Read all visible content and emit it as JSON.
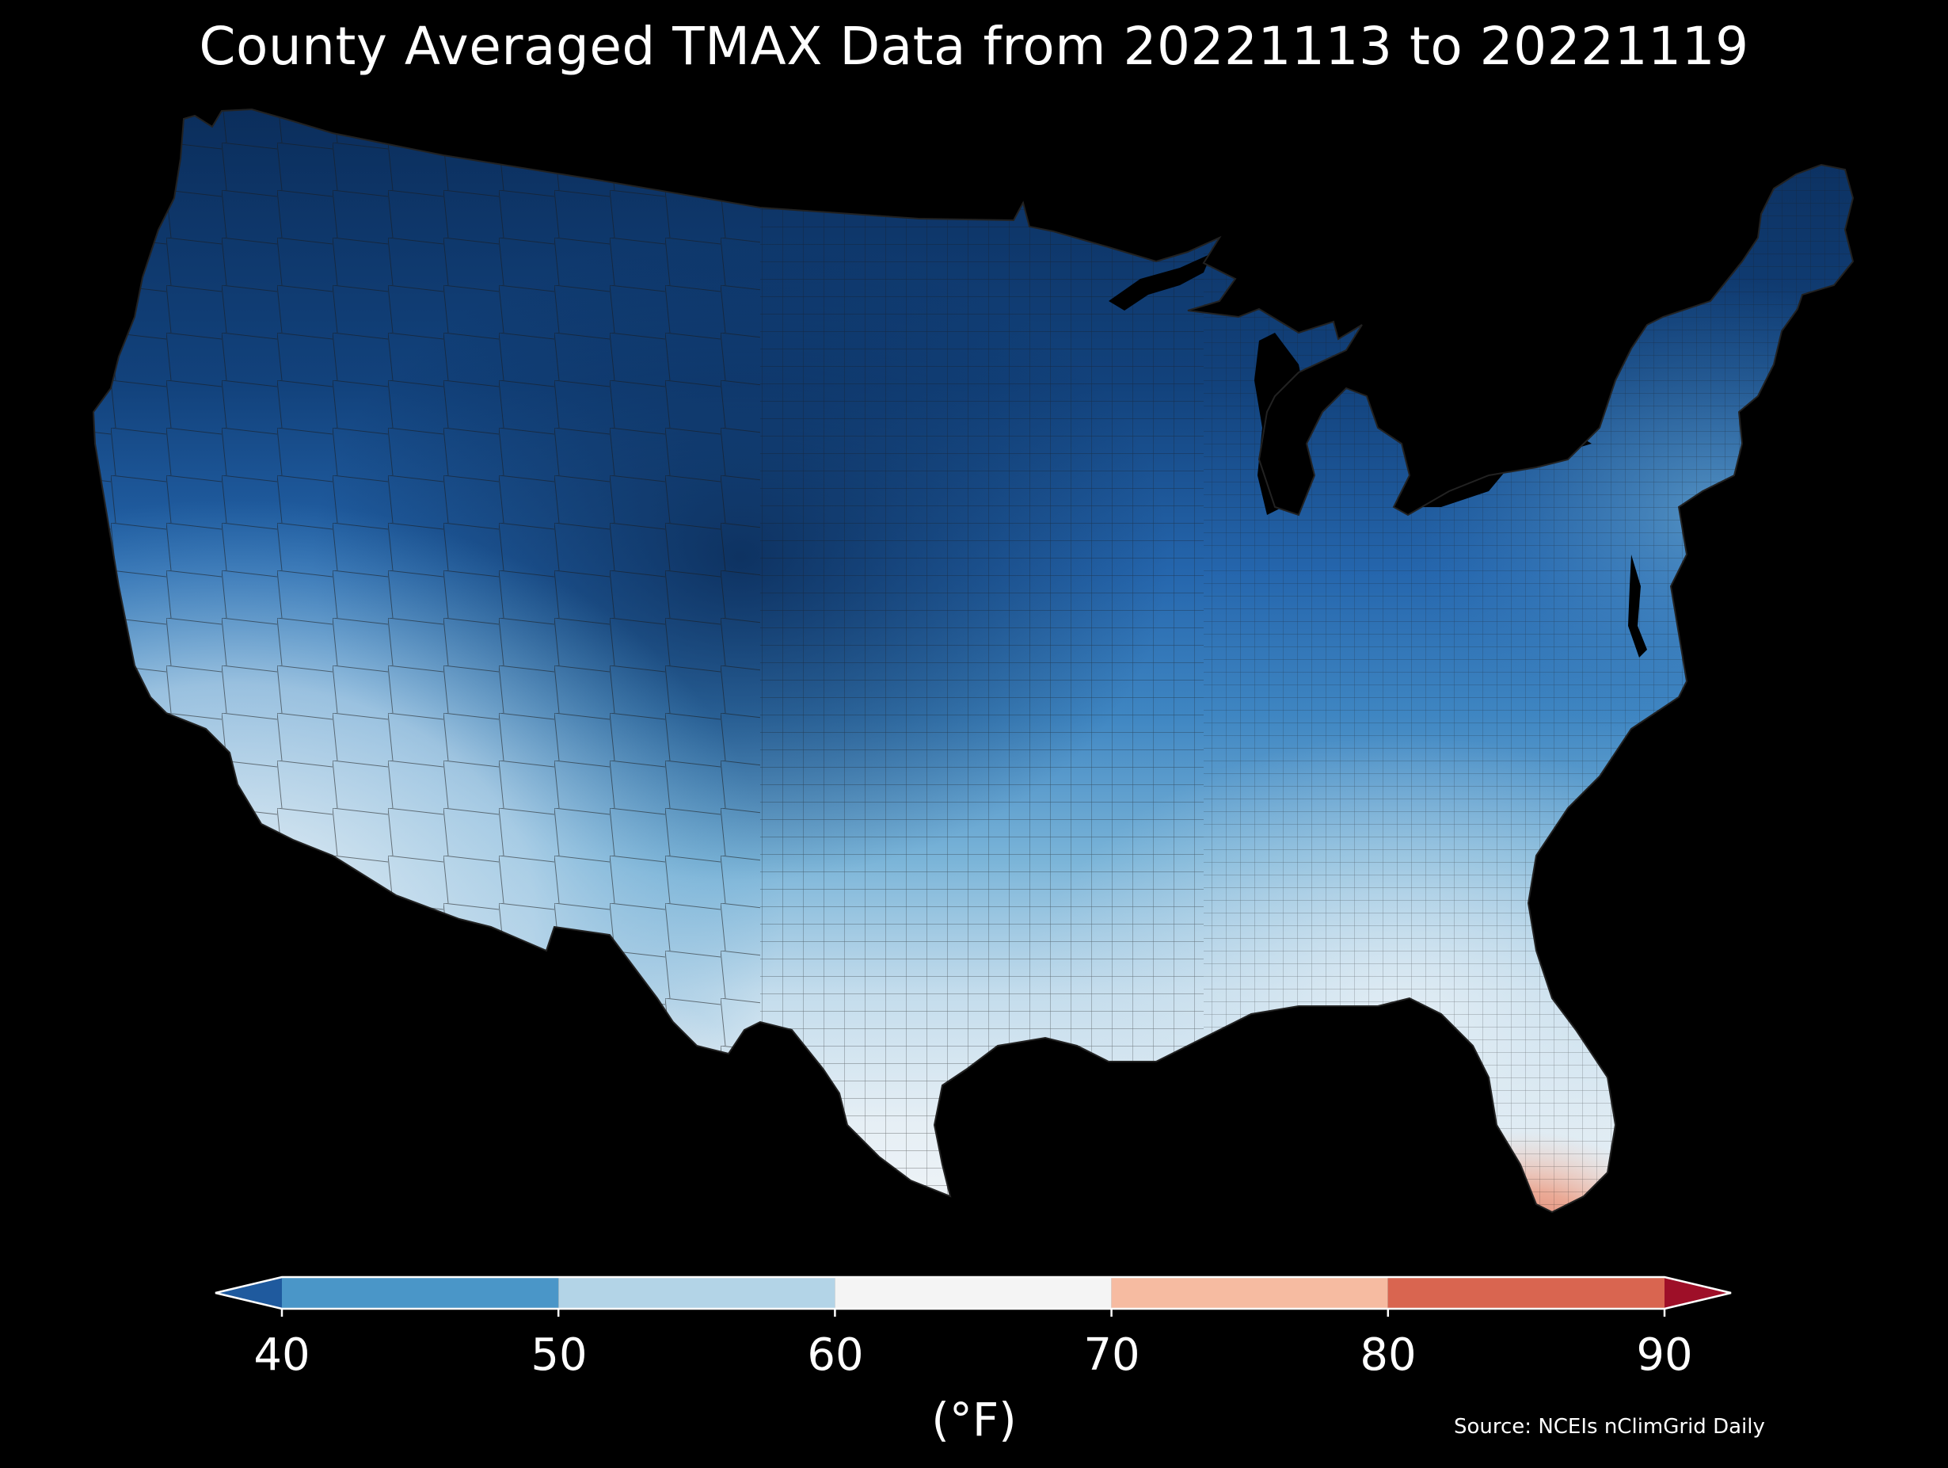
{
  "title": "County Averaged TMAX Data from 20221113 to 20221119",
  "colorbar": {
    "unit": "(°F)",
    "ticks": [
      "40",
      "50",
      "60",
      "70",
      "80",
      "90"
    ],
    "bins": [
      {
        "range": "<40",
        "color": "#1f5a9e"
      },
      {
        "range": "40-50",
        "color": "#4a96c8"
      },
      {
        "range": "50-60",
        "color": "#b3d4e7"
      },
      {
        "range": "60-70",
        "color": "#f4f4f4"
      },
      {
        "range": "70-80",
        "color": "#f6bba1"
      },
      {
        "range": "80-90",
        "color": "#d96550"
      },
      {
        "range": ">90",
        "color": "#9e0f28"
      }
    ]
  },
  "source": "Source: NCEIs nClimGrid Daily",
  "colors": {
    "background": "#000000",
    "text": "#ffffff",
    "county_border": "#1a1a1a"
  }
}
